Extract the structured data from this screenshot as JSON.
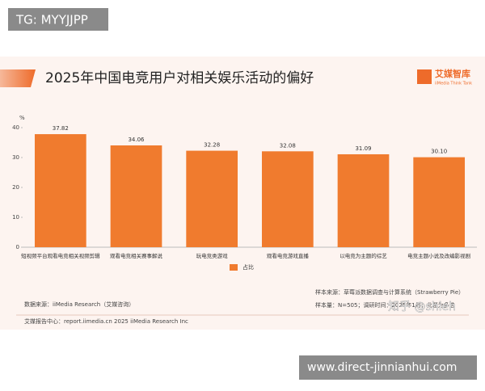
{
  "tag": "TG: MYYJJPP",
  "site": "www.direct-jinnianhui.com",
  "logo": {
    "name": "艾媒智库",
    "subtitle": "iiMedia Think Tank"
  },
  "watermark": "知乎 @shieh",
  "chart_data": {
    "type": "bar",
    "title": "2025年中国电竞用户对相关娱乐活动的偏好",
    "y_label": "%",
    "categories": [
      "短视频平台观看电竞相关视频剪辑",
      "观看电竞相关赛事解说",
      "玩电竞类游戏",
      "观看电竞游戏直播",
      "以电竞为主题的综艺",
      "电竞主题小说及改编影视剧"
    ],
    "series": [
      {
        "name": "占比",
        "color": "#f07b2e",
        "values": [
          37.82,
          34.06,
          32.28,
          32.08,
          31.09,
          30.1
        ],
        "value_labels": [
          "37.82",
          "34.06",
          "32.28",
          "32.08",
          "31.09",
          "30.10"
        ]
      }
    ],
    "ylim": [
      0,
      40
    ],
    "yticks": [
      0,
      10,
      20,
      30,
      40
    ],
    "legend": "bottom",
    "source": "数据来源：iiMedia Research（艾媒咨询）",
    "sample_source": "样本来源：草莓派数据调查与计算系统（Strawberry Pie）",
    "sample_size": "样本量：N=505；调研时间：2025年1月；此题为多选",
    "footer": "艾媒报告中心：report.iimedia.cn   2025 iiMedia Research Inc"
  }
}
